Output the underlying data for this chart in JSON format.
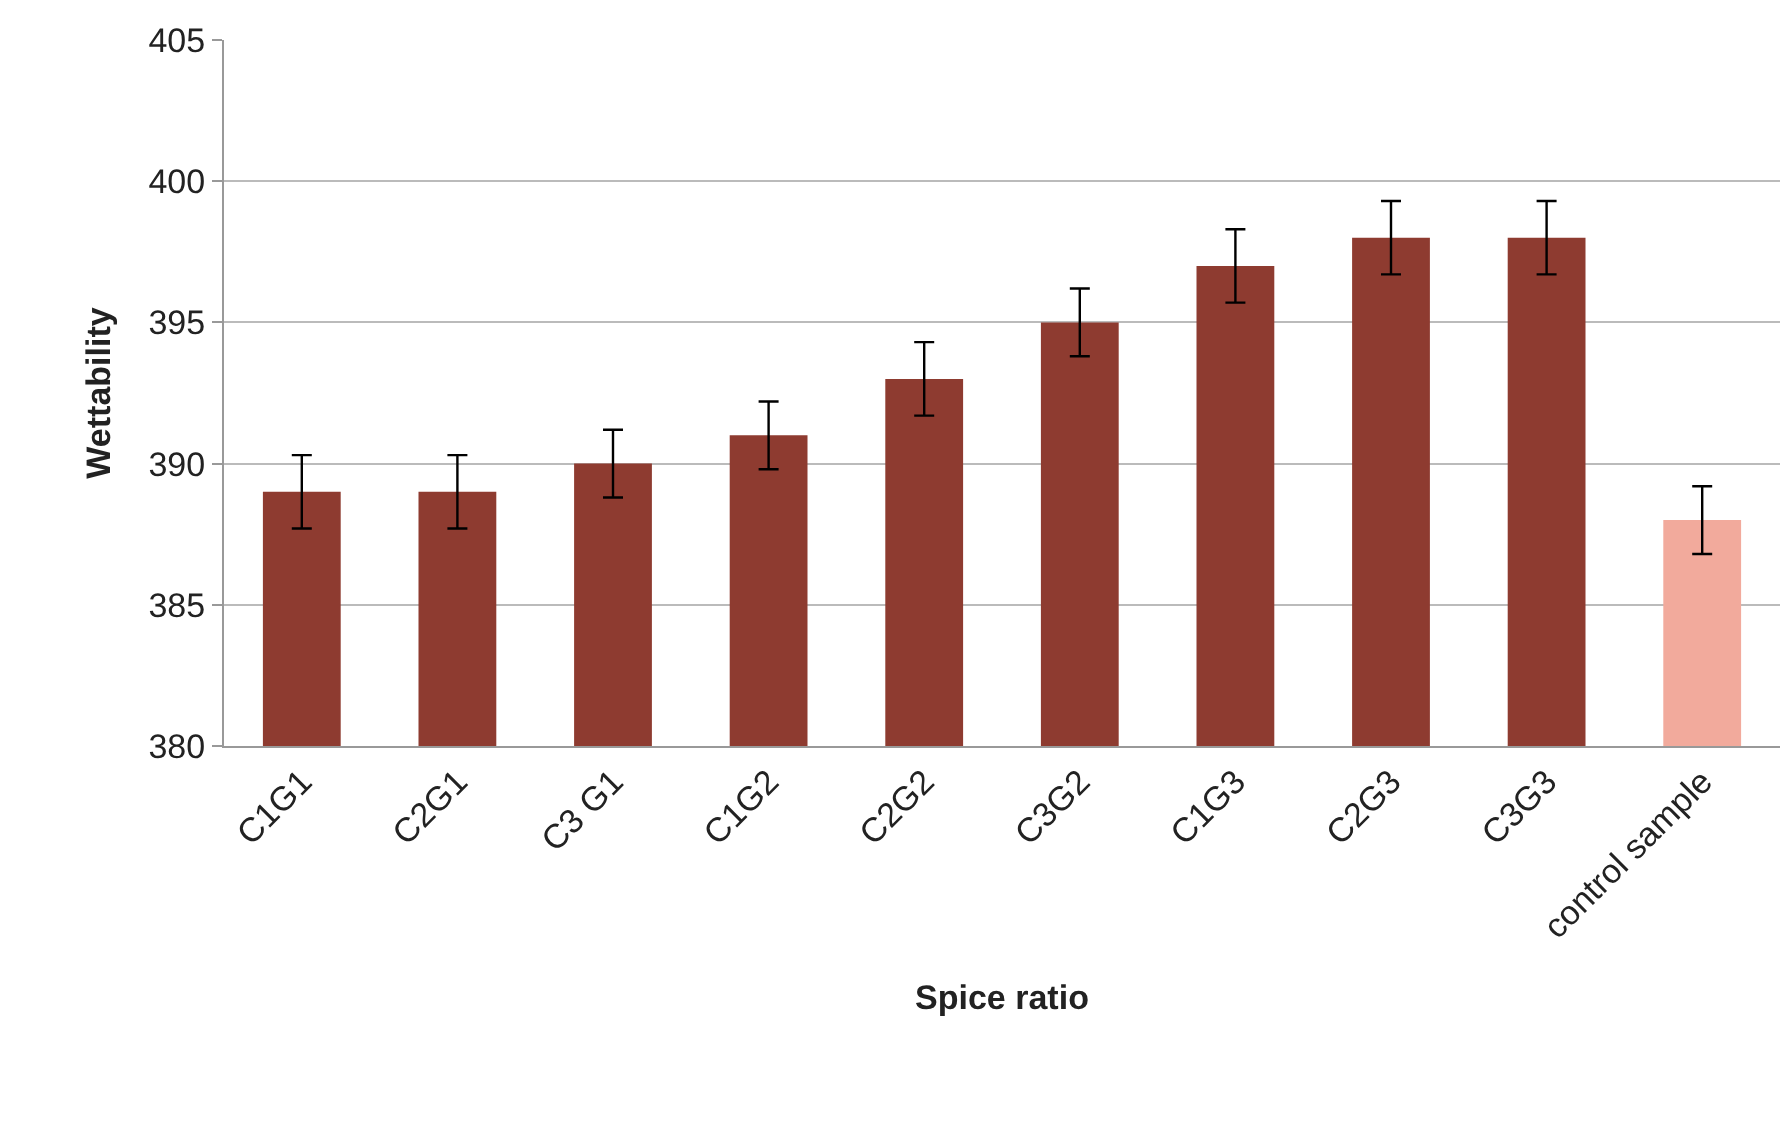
{
  "chart_data": {
    "type": "bar",
    "xlabel": "Spice ratio",
    "ylabel": "Wettability",
    "categories": [
      "C1G1",
      "C2G1",
      "C3 G1",
      "C1G2",
      "C2G2",
      "C3G2",
      "C1G3",
      "C2G3",
      "C3G3",
      "control sample"
    ],
    "values": [
      389,
      389,
      390,
      391,
      393,
      395,
      397,
      398,
      398,
      388
    ],
    "colors": [
      "#8e3b30",
      "#8e3b30",
      "#8e3b30",
      "#8e3b30",
      "#8e3b30",
      "#8e3b30",
      "#8e3b30",
      "#8e3b30",
      "#8e3b30",
      "#f2aa9c"
    ],
    "errors": [
      1.3,
      1.3,
      1.2,
      1.2,
      1.3,
      1.2,
      1.3,
      1.3,
      1.3,
      1.2
    ],
    "ylim": [
      380,
      405
    ],
    "yticks": [
      380,
      385,
      390,
      395,
      400,
      405
    ],
    "grid": "y"
  }
}
